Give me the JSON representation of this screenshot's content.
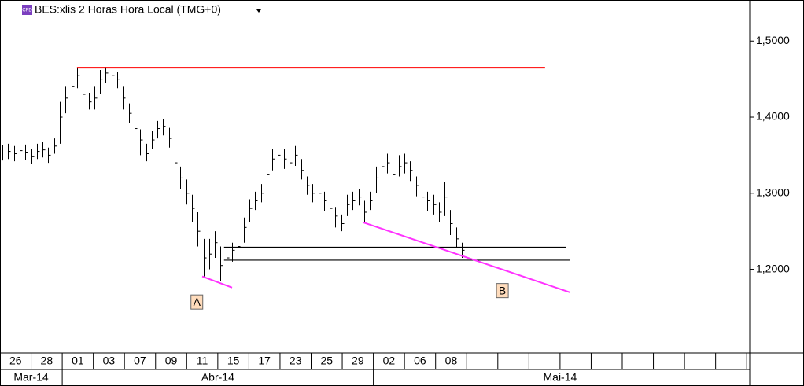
{
  "chart_data": {
    "type": "ohlc",
    "title": "BES:xlis 2 Horas Hora Local (TMG+0)",
    "icon_label": "CFD",
    "ylim": [
      1.09,
      1.554
    ],
    "yticks": [
      {
        "value": 1.5,
        "label": "1,5000"
      },
      {
        "value": 1.4,
        "label": "1,4000"
      },
      {
        "value": 1.3,
        "label": "1,3000"
      },
      {
        "value": 1.2,
        "label": "1,2000"
      }
    ],
    "color": "#000000",
    "close": [
      1.353,
      1.355,
      1.352,
      1.356,
      1.354,
      1.348,
      1.355,
      1.357,
      1.35,
      1.362,
      1.4,
      1.425,
      1.44,
      1.455,
      1.43,
      1.42,
      1.425,
      1.45,
      1.458,
      1.455,
      1.45,
      1.425,
      1.405,
      1.385,
      1.37,
      1.352,
      1.37,
      1.385,
      1.388,
      1.372,
      1.34,
      1.32,
      1.3,
      1.28,
      1.25,
      1.215,
      1.22,
      1.235,
      1.205,
      1.215,
      1.225,
      1.23,
      1.255,
      1.28,
      1.29,
      1.3,
      1.325,
      1.345,
      1.35,
      1.345,
      1.34,
      1.35,
      1.33,
      1.31,
      1.3,
      1.3,
      1.29,
      1.28,
      1.27,
      1.26,
      1.285,
      1.29,
      1.295,
      1.275,
      1.29,
      1.32,
      1.335,
      1.34,
      1.325,
      1.335,
      1.34,
      1.33,
      1.31,
      1.295,
      1.29,
      1.285,
      1.275,
      1.295,
      1.26,
      1.24,
      1.225
    ],
    "high": [
      1.363,
      1.365,
      1.362,
      1.366,
      1.364,
      1.358,
      1.365,
      1.367,
      1.36,
      1.372,
      1.42,
      1.44,
      1.452,
      1.465,
      1.445,
      1.432,
      1.44,
      1.462,
      1.466,
      1.465,
      1.46,
      1.44,
      1.418,
      1.398,
      1.384,
      1.365,
      1.382,
      1.395,
      1.398,
      1.386,
      1.36,
      1.335,
      1.318,
      1.298,
      1.275,
      1.24,
      1.24,
      1.25,
      1.23,
      1.228,
      1.235,
      1.242,
      1.268,
      1.292,
      1.302,
      1.312,
      1.338,
      1.358,
      1.362,
      1.358,
      1.352,
      1.362,
      1.345,
      1.322,
      1.312,
      1.31,
      1.302,
      1.292,
      1.282,
      1.272,
      1.298,
      1.302,
      1.306,
      1.29,
      1.302,
      1.335,
      1.35,
      1.352,
      1.34,
      1.35,
      1.352,
      1.342,
      1.322,
      1.308,
      1.302,
      1.298,
      1.288,
      1.315,
      1.278,
      1.255,
      1.235
    ],
    "low": [
      1.343,
      1.345,
      1.342,
      1.346,
      1.344,
      1.338,
      1.345,
      1.347,
      1.34,
      1.352,
      1.365,
      1.405,
      1.425,
      1.438,
      1.415,
      1.41,
      1.41,
      1.43,
      1.445,
      1.445,
      1.438,
      1.41,
      1.392,
      1.372,
      1.35,
      1.342,
      1.358,
      1.372,
      1.376,
      1.36,
      1.325,
      1.305,
      1.285,
      1.262,
      1.23,
      1.19,
      1.2,
      1.215,
      1.185,
      1.2,
      1.21,
      1.215,
      1.235,
      1.262,
      1.278,
      1.288,
      1.31,
      1.33,
      1.338,
      1.332,
      1.328,
      1.336,
      1.318,
      1.298,
      1.288,
      1.288,
      1.276,
      1.262,
      1.255,
      1.25,
      1.27,
      1.278,
      1.284,
      1.262,
      1.278,
      1.3,
      1.322,
      1.326,
      1.312,
      1.322,
      1.326,
      1.316,
      1.296,
      1.282,
      1.276,
      1.272,
      1.262,
      1.27,
      1.245,
      1.228,
      1.215
    ],
    "lines": [
      {
        "from": [
          13,
          1.465
        ],
        "to": [
          94.5,
          1.465
        ],
        "color": "#ff0000"
      },
      {
        "from": [
          38.6,
          1.229
        ],
        "to": [
          98.2,
          1.229
        ],
        "color": "#000000"
      },
      {
        "from": [
          38.6,
          1.212
        ],
        "to": [
          98.9,
          1.212
        ],
        "color": "#000000"
      },
      {
        "from": [
          34.8,
          1.1907
        ],
        "to": [
          40,
          1.176
        ],
        "color": "#ff33ff"
      },
      {
        "from": [
          62.9,
          1.2615
        ],
        "to": [
          98.9,
          1.1695
        ],
        "color": "#ff33ff"
      }
    ],
    "annotations": [
      {
        "text": "A",
        "at": [
          33.8,
          1.157
        ]
      },
      {
        "text": "B",
        "at": [
          87,
          1.172
        ]
      }
    ],
    "x_labels": [
      "26",
      "28",
      "01",
      "03",
      "07",
      "09",
      "11",
      "15",
      "17",
      "23",
      "25",
      "29",
      "02",
      "06",
      "08"
    ],
    "months": [
      {
        "label": "Mar-14",
        "start": 0
      },
      {
        "label": "Abr-14",
        "start": 2
      },
      {
        "label": "Mai-14",
        "start": 12
      }
    ]
  }
}
